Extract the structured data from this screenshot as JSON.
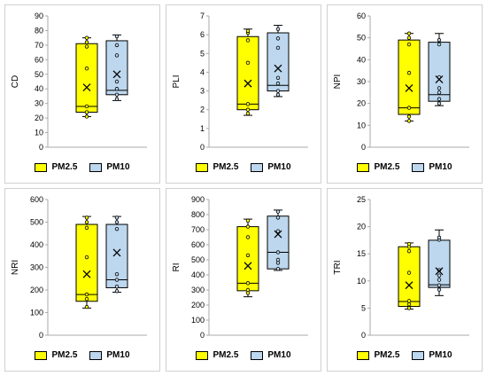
{
  "colors": {
    "pm25": "#ffff00",
    "pm10": "#bdd7ee",
    "stroke": "#000000",
    "axis": "#aaaaaa"
  },
  "legend": {
    "pm25": "PM2.5",
    "pm10": "PM10"
  },
  "chart_data": [
    {
      "type": "box",
      "ylabel": "CD",
      "ylim": [
        0,
        90
      ],
      "ystep": 10,
      "series": [
        {
          "name": "PM2.5",
          "min": 21,
          "q1": 24,
          "median": 28,
          "q3": 71,
          "max": 75,
          "mean": 41,
          "points": [
            21,
            24,
            28,
            54,
            69,
            72,
            75
          ]
        },
        {
          "name": "PM10",
          "min": 32,
          "q1": 36,
          "median": 39,
          "q3": 73,
          "max": 77,
          "mean": 50,
          "points": [
            33,
            36,
            40,
            45,
            63,
            70,
            76
          ]
        }
      ]
    },
    {
      "type": "box",
      "ylabel": "PLI",
      "ylim": [
        0,
        7
      ],
      "ystep": 1,
      "series": [
        {
          "name": "PM2.5",
          "min": 1.7,
          "q1": 2.0,
          "median": 2.3,
          "q3": 5.9,
          "max": 6.3,
          "mean": 3.4,
          "points": [
            1.8,
            2.0,
            2.3,
            4.5,
            5.7,
            6.1,
            6.2
          ]
        },
        {
          "name": "PM10",
          "min": 2.7,
          "q1": 3.0,
          "median": 3.3,
          "q3": 6.1,
          "max": 6.5,
          "mean": 4.2,
          "points": [
            2.8,
            3.0,
            3.4,
            3.7,
            5.3,
            5.8,
            6.3
          ]
        }
      ]
    },
    {
      "type": "box",
      "ylabel": "NPI",
      "ylim": [
        0,
        60
      ],
      "ystep": 10,
      "series": [
        {
          "name": "PM2.5",
          "min": 12,
          "q1": 15,
          "median": 18,
          "q3": 49,
          "max": 52,
          "mean": 27,
          "points": [
            12,
            14,
            18,
            34,
            47,
            50,
            52
          ]
        },
        {
          "name": "PM10",
          "min": 19,
          "q1": 21,
          "median": 24,
          "q3": 48,
          "max": 52,
          "mean": 31,
          "points": [
            20,
            22,
            25,
            27,
            32,
            47,
            49
          ]
        }
      ]
    },
    {
      "type": "box",
      "ylabel": "NRI",
      "ylim": [
        0,
        600
      ],
      "ystep": 100,
      "series": [
        {
          "name": "PM2.5",
          "min": 120,
          "q1": 150,
          "median": 180,
          "q3": 490,
          "max": 525,
          "mean": 270,
          "points": [
            125,
            160,
            180,
            345,
            475,
            500,
            520
          ]
        },
        {
          "name": "PM10",
          "min": 190,
          "q1": 210,
          "median": 245,
          "q3": 490,
          "max": 525,
          "mean": 365,
          "points": [
            195,
            215,
            245,
            270,
            470,
            500,
            520
          ]
        }
      ]
    },
    {
      "type": "box",
      "ylabel": "RI",
      "ylim": [
        0,
        900
      ],
      "ystep": 100,
      "series": [
        {
          "name": "PM2.5",
          "min": 255,
          "q1": 295,
          "median": 345,
          "q3": 720,
          "max": 770,
          "mean": 460,
          "points": [
            280,
            300,
            345,
            530,
            650,
            720,
            760
          ]
        },
        {
          "name": "PM10",
          "min": 430,
          "q1": 440,
          "median": 550,
          "q3": 790,
          "max": 830,
          "mean": 670,
          "points": [
            440,
            480,
            500,
            550,
            690,
            780,
            820
          ]
        }
      ]
    },
    {
      "type": "box",
      "ylabel": "TRI",
      "ylim": [
        0,
        25
      ],
      "ystep": 5,
      "series": [
        {
          "name": "PM2.5",
          "min": 4.8,
          "q1": 5.3,
          "median": 6.2,
          "q3": 16.3,
          "max": 17.0,
          "mean": 9.2,
          "points": [
            5.0,
            5.7,
            6.3,
            11.5,
            15.5,
            16.3,
            16.8
          ]
        },
        {
          "name": "PM10",
          "min": 7.3,
          "q1": 8.8,
          "median": 9.3,
          "q3": 17.5,
          "max": 19.4,
          "mean": 11.8,
          "points": [
            8.4,
            9.2,
            10.2,
            11.0,
            12.0,
            17.6,
            18.0
          ]
        }
      ]
    }
  ]
}
